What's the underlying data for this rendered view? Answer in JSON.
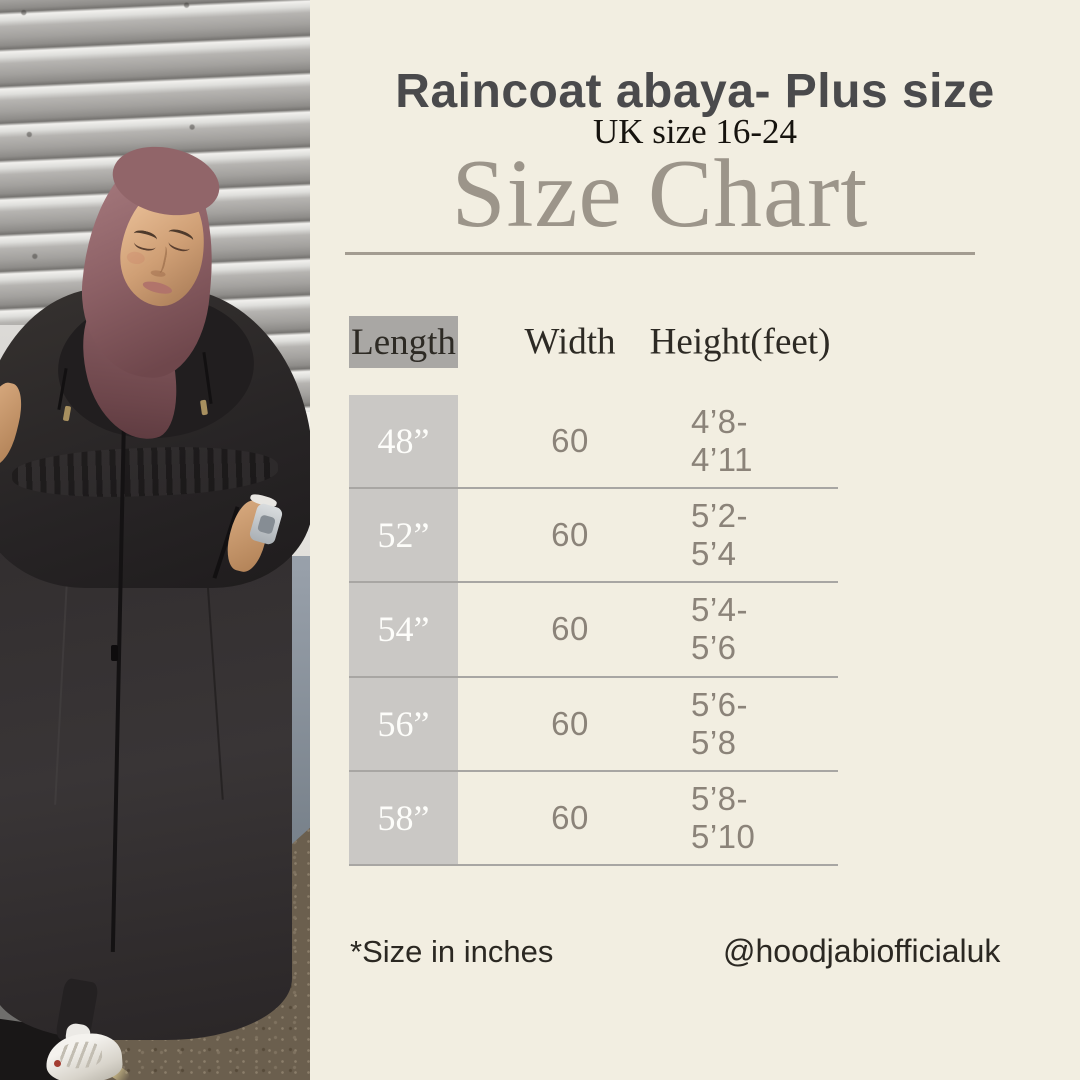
{
  "header": {
    "title": "Raincoat abaya- Plus size",
    "subtitle": "UK size 16-24",
    "chart_heading": "Size Chart"
  },
  "table": {
    "columns": {
      "length": "Length",
      "width": "Width",
      "height": "Height(feet)"
    },
    "rows": [
      {
        "length": "48”",
        "width": "60",
        "height": "4’8-4’11"
      },
      {
        "length": "52”",
        "width": "60",
        "height": "5’2-5’4"
      },
      {
        "length": "54”",
        "width": "60",
        "height": "5’4-5’6"
      },
      {
        "length": "56”",
        "width": "60",
        "height": "5’6-5’8"
      },
      {
        "length": "58”",
        "width": "60",
        "height": "5’8-5’10"
      }
    ]
  },
  "footer": {
    "note": "*Size in inches",
    "handle": "@hoodjabiofficialuk"
  },
  "photo": {
    "description": "Model in black hooded raincoat abaya with mauve hijab, standing by a metal roller shutter"
  },
  "colors": {
    "background": "#f2eee1",
    "header_cell": "#a9a7a4",
    "row_cell": "#cac8c5",
    "divider": "#a8a6a3",
    "heading_text": "#9c958a",
    "title_text": "#4a4a4c",
    "value_text": "#8b8379",
    "hijab": "#8d6166"
  }
}
